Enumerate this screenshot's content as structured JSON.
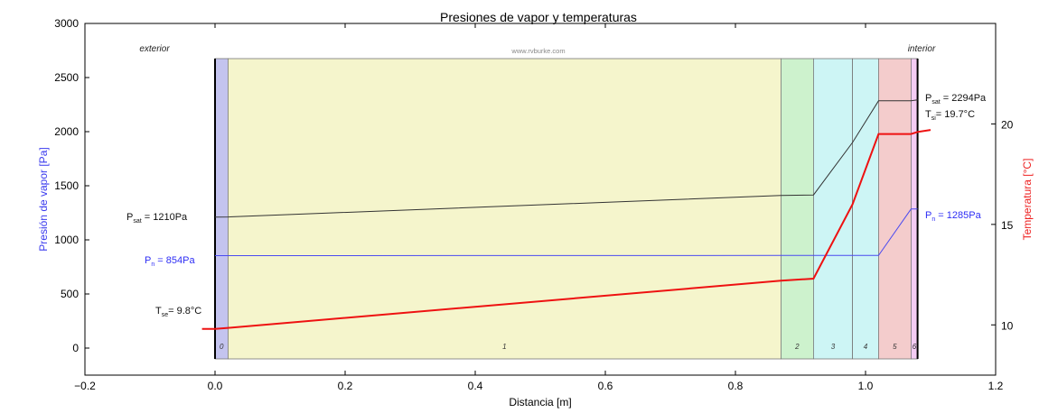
{
  "chart_data": {
    "type": "line",
    "title": "Presiones de vapor y temperaturas",
    "watermark": "www.rvburke.com",
    "xlabel": "Distancia [m]",
    "ylabel": "Presión de vapor [Pa]",
    "y2label": "Temperatura [°C]",
    "xlim": [
      -0.2,
      1.2
    ],
    "ylim": [
      -250,
      3000
    ],
    "y2lim": [
      7.5,
      25.0
    ],
    "xticks": [
      "−0.2",
      "0.0",
      "0.2",
      "0.4",
      "0.6",
      "0.8",
      "1.0",
      "1.2"
    ],
    "xtick_values": [
      -0.2,
      0.0,
      0.2,
      0.4,
      0.6,
      0.8,
      1.0,
      1.2
    ],
    "yticks": [
      "0",
      "500",
      "1000",
      "1500",
      "2000",
      "2500",
      "3000"
    ],
    "ytick_values": [
      0,
      500,
      1000,
      1500,
      2000,
      2500,
      3000
    ],
    "y2ticks": [
      "10",
      "15",
      "20"
    ],
    "y2tick_values": [
      10,
      15,
      20
    ],
    "side_labels": {
      "left": "exterior",
      "right": "interior"
    },
    "colors": {
      "psat": "#333333",
      "pn": "#4a4af0",
      "temperature": "#ee1111",
      "ylabel": "#3a3aee",
      "y2label": "#ee2222"
    },
    "layers": [
      {
        "label": "0",
        "x_start": 0.0,
        "x_end": 0.02,
        "color": "#c4c4ef"
      },
      {
        "label": "1",
        "x_start": 0.02,
        "x_end": 0.87,
        "color": "#f5f5cc"
      },
      {
        "label": "2",
        "x_start": 0.87,
        "x_end": 0.92,
        "color": "#cdf2cd"
      },
      {
        "label": "3",
        "x_start": 0.92,
        "x_end": 0.98,
        "color": "#cdf5f5"
      },
      {
        "label": "4",
        "x_start": 0.98,
        "x_end": 1.02,
        "color": "#cdf5f5"
      },
      {
        "label": "5",
        "x_start": 1.02,
        "x_end": 1.07,
        "color": "#f4cccc"
      },
      {
        "label": "6",
        "x_start": 1.07,
        "x_end": 1.08,
        "color": "#f4ccf4"
      }
    ],
    "series": [
      {
        "key": "psat",
        "axis": "left",
        "x": [
          0.0,
          0.02,
          0.87,
          0.92,
          0.98,
          1.02,
          1.07,
          1.08
        ],
        "y": [
          1210,
          1212,
          1410,
          1415,
          1900,
          2285,
          2285,
          2294
        ]
      },
      {
        "key": "pn",
        "axis": "left",
        "x": [
          0.0,
          0.02,
          0.87,
          0.92,
          0.98,
          1.02,
          1.07,
          1.08
        ],
        "y": [
          854,
          854,
          856,
          856,
          856,
          856,
          1285,
          1285
        ]
      },
      {
        "key": "temperature",
        "axis": "right",
        "x": [
          -0.02,
          0.0,
          0.02,
          0.87,
          0.92,
          0.98,
          1.02,
          1.07,
          1.08,
          1.1
        ],
        "y": [
          9.8,
          9.8,
          9.85,
          12.2,
          12.3,
          16.0,
          19.5,
          19.5,
          19.6,
          19.7
        ]
      }
    ],
    "annotations": [
      {
        "key": "psat_ext",
        "main": "P",
        "sub": "sat",
        "rest": " =  1210Pa",
        "color": "#111111"
      },
      {
        "key": "pn_ext",
        "main": "P",
        "sub": "n",
        "rest": " =  854Pa",
        "color": "#2e2ef5"
      },
      {
        "key": "tse",
        "main": "T",
        "sub": "se",
        "rest": "= 9.8°C",
        "color": "#111111"
      },
      {
        "key": "psat_int",
        "main": "P",
        "sub": "sat",
        "rest": " =  2294Pa",
        "color": "#111111"
      },
      {
        "key": "tsi",
        "main": "T",
        "sub": "si",
        "rest": "= 19.7°C",
        "color": "#111111"
      },
      {
        "key": "pn_int",
        "main": "P",
        "sub": "n",
        "rest": " =  1285Pa",
        "color": "#2e2ef5"
      }
    ]
  }
}
